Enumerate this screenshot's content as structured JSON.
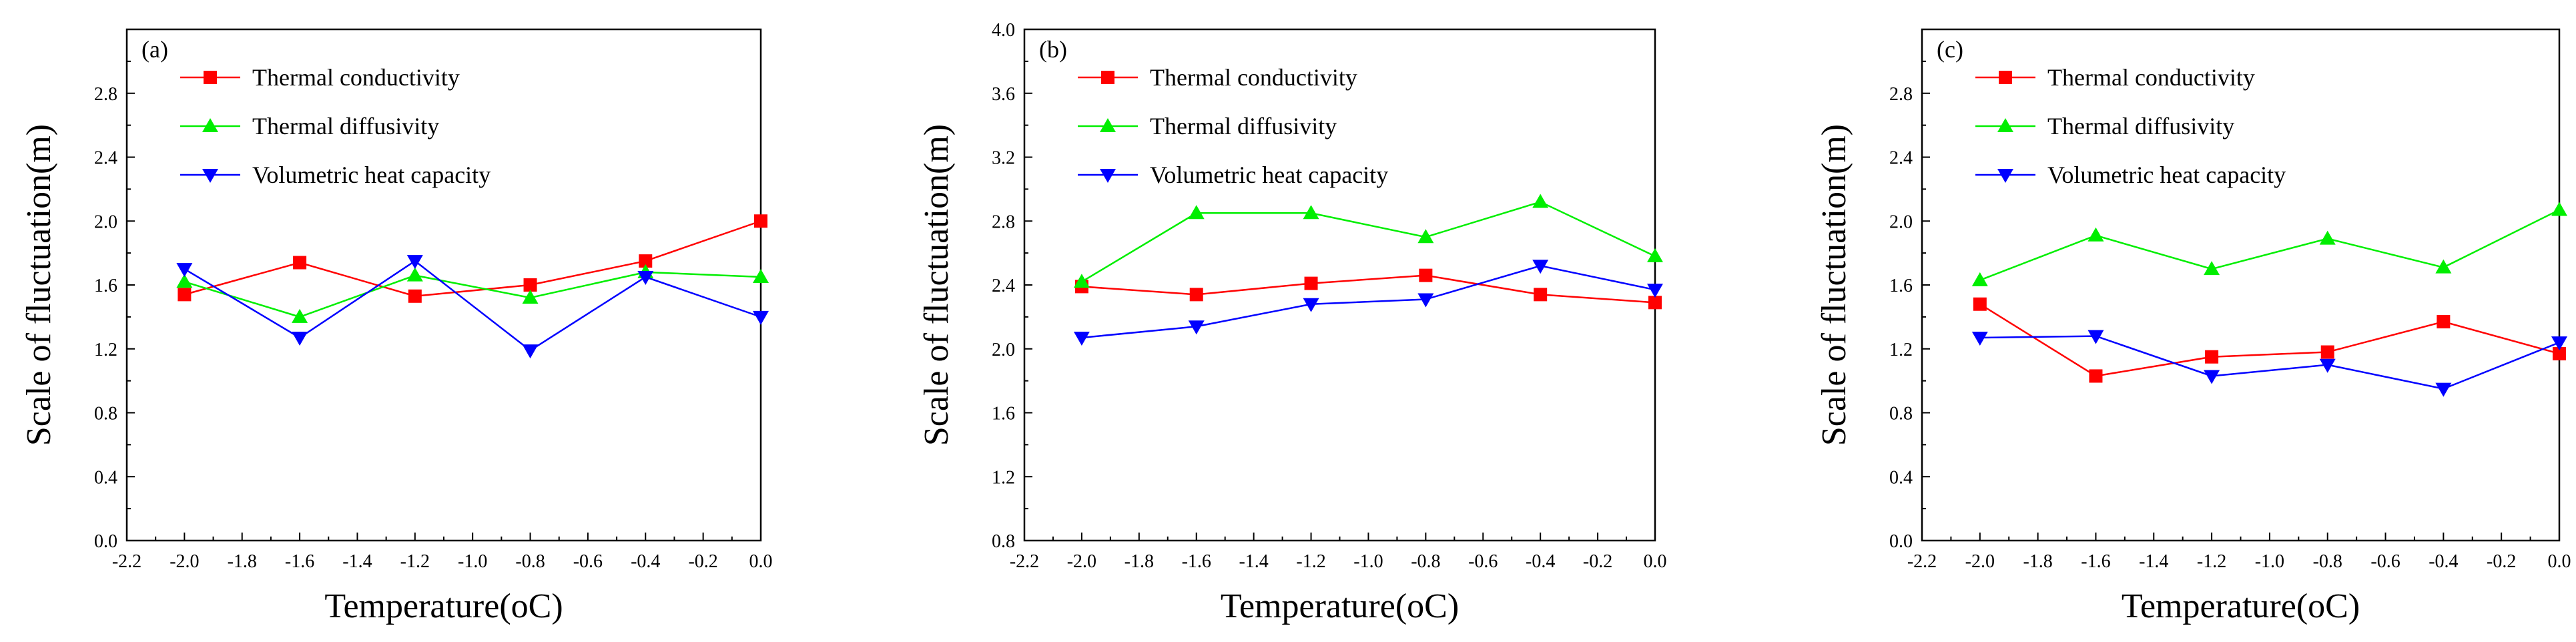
{
  "chart_data": [
    {
      "type": "line",
      "panel_label": "(a)",
      "xlabel": "Temperature(oC)",
      "ylabel": "Scale of fluctuation(m)",
      "xlim": [
        -2.2,
        0.0
      ],
      "ylim": [
        0.0,
        3.2
      ],
      "xticks": [
        -2.2,
        -2.0,
        -1.8,
        -1.6,
        -1.4,
        -1.2,
        -1.0,
        -0.8,
        -0.6,
        -0.4,
        -0.2,
        0.0
      ],
      "xtick_labels": [
        "-2.2",
        "-2.0",
        "-1.8",
        "-1.6",
        "-1.4",
        "-1.2",
        "-1.0",
        "-0.8",
        "-0.6",
        "-0.4",
        "-0.2",
        "0.0"
      ],
      "yticks": [
        0.0,
        0.4,
        0.8,
        1.2,
        1.6,
        2.0,
        2.4,
        2.8
      ],
      "ytick_labels": [
        "0.0",
        "0.4",
        "0.8",
        "1.2",
        "1.6",
        "2.0",
        "2.4",
        "2.8"
      ],
      "legend_position": "top-left",
      "x": [
        -2.0,
        -1.6,
        -1.2,
        -0.8,
        -0.4,
        0.0
      ],
      "series": [
        {
          "name": "Thermal conductivity",
          "color": "#ff0000",
          "marker": "square",
          "values": [
            1.54,
            1.74,
            1.53,
            1.6,
            1.75,
            2.0
          ]
        },
        {
          "name": "Thermal diffusivity",
          "color": "#00ee00",
          "marker": "triangle-up",
          "values": [
            1.62,
            1.4,
            1.66,
            1.52,
            1.68,
            1.65
          ]
        },
        {
          "name": "Volumetric heat capacity",
          "color": "#0000ff",
          "marker": "triangle-down",
          "values": [
            1.7,
            1.27,
            1.75,
            1.19,
            1.65,
            1.4
          ]
        }
      ]
    },
    {
      "type": "line",
      "panel_label": "(b)",
      "xlabel": "Temperature(oC)",
      "ylabel": "Scale of fluctuation(m)",
      "xlim": [
        -2.2,
        0.0
      ],
      "ylim": [
        0.8,
        4.0
      ],
      "xticks": [
        -2.2,
        -2.0,
        -1.8,
        -1.6,
        -1.4,
        -1.2,
        -1.0,
        -0.8,
        -0.6,
        -0.4,
        -0.2,
        0.0
      ],
      "xtick_labels": [
        "-2.2",
        "-2.0",
        "-1.8",
        "-1.6",
        "-1.4",
        "-1.2",
        "-1.0",
        "-0.8",
        "-0.6",
        "-0.4",
        "-0.2",
        "0.0"
      ],
      "yticks": [
        0.8,
        1.2,
        1.6,
        2.0,
        2.4,
        2.8,
        3.2,
        3.6,
        4.0
      ],
      "ytick_labels": [
        "0.8",
        "1.2",
        "1.6",
        "2.0",
        "2.4",
        "2.8",
        "3.2",
        "3.6",
        "4.0"
      ],
      "legend_position": "top-left",
      "x": [
        -2.0,
        -1.6,
        -1.2,
        -0.8,
        -0.4,
        0.0
      ],
      "series": [
        {
          "name": "Thermal conductivity",
          "color": "#ff0000",
          "marker": "square",
          "values": [
            2.39,
            2.34,
            2.41,
            2.46,
            2.34,
            2.29
          ]
        },
        {
          "name": "Thermal diffusivity",
          "color": "#00ee00",
          "marker": "triangle-up",
          "values": [
            2.42,
            2.85,
            2.85,
            2.7,
            2.92,
            2.58
          ]
        },
        {
          "name": "Volumetric heat capacity",
          "color": "#0000ff",
          "marker": "triangle-down",
          "values": [
            2.07,
            2.14,
            2.28,
            2.31,
            2.52,
            2.37
          ]
        }
      ]
    },
    {
      "type": "line",
      "panel_label": "(c)",
      "xlabel": "Temperature(oC)",
      "ylabel": "Scale of fluctuation(m)",
      "xlim": [
        -2.2,
        0.0
      ],
      "ylim": [
        0.0,
        3.2
      ],
      "xticks": [
        -2.2,
        -2.0,
        -1.8,
        -1.6,
        -1.4,
        -1.2,
        -1.0,
        -0.8,
        -0.6,
        -0.4,
        -0.2,
        0.0
      ],
      "xtick_labels": [
        "-2.2",
        "-2.0",
        "-1.8",
        "-1.6",
        "-1.4",
        "-1.2",
        "-1.0",
        "-0.8",
        "-0.6",
        "-0.4",
        "-0.2",
        "0.0"
      ],
      "yticks": [
        0.0,
        0.4,
        0.8,
        1.2,
        1.6,
        2.0,
        2.4,
        2.8
      ],
      "ytick_labels": [
        "0.0",
        "0.4",
        "0.8",
        "1.2",
        "1.6",
        "2.0",
        "2.4",
        "2.8"
      ],
      "legend_position": "top-left",
      "x": [
        -2.0,
        -1.6,
        -1.2,
        -0.8,
        -0.4,
        0.0
      ],
      "series": [
        {
          "name": "Thermal conductivity",
          "color": "#ff0000",
          "marker": "square",
          "values": [
            1.48,
            1.03,
            1.15,
            1.18,
            1.37,
            1.17
          ]
        },
        {
          "name": "Thermal diffusivity",
          "color": "#00ee00",
          "marker": "triangle-up",
          "values": [
            1.63,
            1.91,
            1.7,
            1.89,
            1.71,
            2.07
          ]
        },
        {
          "name": "Volumetric heat capacity",
          "color": "#0000ff",
          "marker": "triangle-down",
          "values": [
            1.27,
            1.28,
            1.03,
            1.1,
            0.95,
            1.24
          ]
        }
      ]
    }
  ]
}
